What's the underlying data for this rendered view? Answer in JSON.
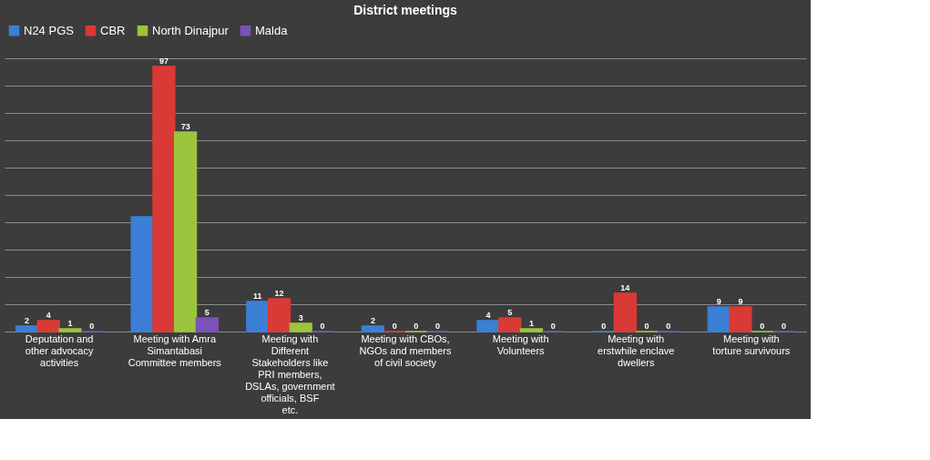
{
  "chart_data": {
    "type": "bar",
    "title": "District meetings",
    "categories": [
      "Deputation and other advocacy activities",
      "Meeting with Amra Simantabasi Committee members",
      "Meeting with Different Stakeholders like PRI members, DSLAs, government officials, BSF etc.",
      "Meeting with CBOs, NGOs and members of civil society",
      "Meeting with Volunteers",
      "Meeting with erstwhile enclave dwellers",
      "Meeting with torture survivours"
    ],
    "series": [
      {
        "name": "N24 PGS",
        "color": "#3b7fd6",
        "values": [
          2,
          42,
          11,
          2,
          4,
          0,
          9
        ],
        "value_labels": [
          "2",
          null,
          "11",
          "2",
          "4",
          "0",
          "9"
        ]
      },
      {
        "name": "CBR",
        "color": "#d93a36",
        "values": [
          4,
          97,
          12,
          0,
          5,
          14,
          9
        ],
        "value_labels": [
          "4",
          "97",
          "12",
          "0",
          "5",
          "14",
          "9"
        ]
      },
      {
        "name": "North Dinajpur",
        "color": "#9cc43c",
        "values": [
          1,
          73,
          3,
          0,
          1,
          0,
          0
        ],
        "value_labels": [
          "1",
          "73",
          "3",
          "0",
          "1",
          "0",
          "0"
        ]
      },
      {
        "name": "Malda",
        "color": "#7d52b8",
        "values": [
          0,
          5,
          0,
          0,
          0,
          0,
          0
        ],
        "value_labels": [
          "0",
          "5",
          "0",
          "0",
          "0",
          "0",
          "0"
        ]
      }
    ],
    "ylim": [
      0,
      100
    ],
    "grid": "y",
    "legend": "top",
    "tick_labels": "x"
  }
}
